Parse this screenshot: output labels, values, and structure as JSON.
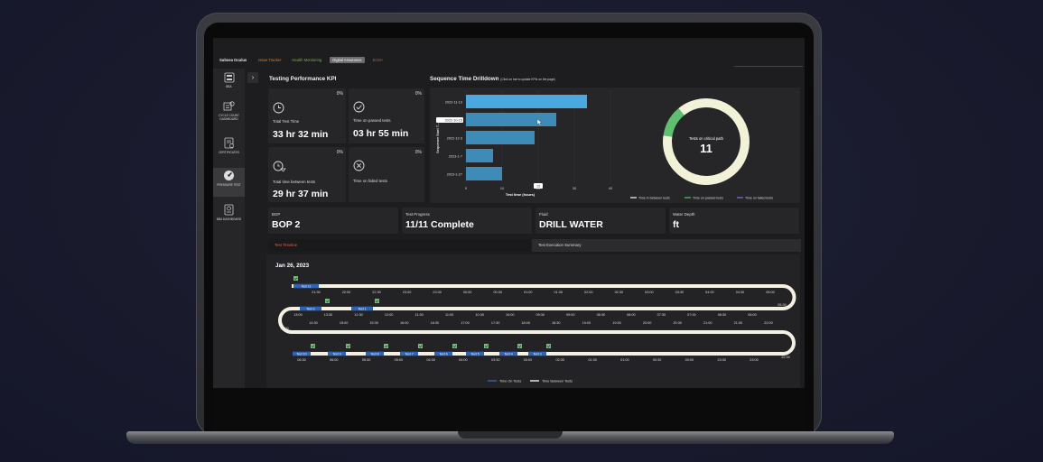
{
  "nav": {
    "brand": "Subsea Oculus",
    "links": [
      "Issue Tracker",
      "Health Monitoring",
      "Digital Assurance",
      "ECM+"
    ],
    "link_colors": [
      "#d9833a",
      "#6dbb3f",
      "#ffffff",
      "#e04a3a"
    ]
  },
  "sidebar": {
    "items": [
      "BBA",
      "CYCLE COUNT DASHBOARD",
      "CERTIFICATES",
      "PRESSURE TEST",
      "BBA DASHBOARD"
    ]
  },
  "kpi": {
    "title": "Testing Performance KPI",
    "cards": [
      {
        "label": "Total Test Time",
        "value": "33 hr 32 min",
        "pct": "0%"
      },
      {
        "label": "Time on passed tests",
        "value": "03 hr 55 min",
        "pct": "0%"
      },
      {
        "label": "Total time between tests",
        "value": "29 hr 37 min",
        "pct": "0%"
      },
      {
        "label": "Time on failed tests",
        "value": "",
        "pct": "0%"
      }
    ]
  },
  "drilldown": {
    "title": "Sequence Time Drilldown",
    "subtitle": "(Click on bar to update KPIs on the page)",
    "tooltip_value": "13",
    "donut_label": "Tests on critical path",
    "donut_value": "11"
  },
  "chart_data": [
    {
      "type": "bar",
      "orientation": "horizontal",
      "title": "Sequence Time Drilldown",
      "categories": [
        "2022-11-13",
        "2022-10-15",
        "2022-12-3",
        "2023-1-7",
        "2023-1-27"
      ],
      "values": [
        33.5,
        25,
        19,
        7.5,
        10
      ],
      "xlabel": "Test time (hours)",
      "ylabel": "Sequence Start T...",
      "xlim": [
        0,
        40
      ],
      "xticks": [
        0,
        10,
        20,
        30,
        40
      ],
      "legend": [
        "Time in between tests",
        "Time on passed tests",
        "Time on failed tests"
      ],
      "legend_colors": [
        "#ffffff",
        "#5fbf6f",
        "#8f6fd0"
      ],
      "highlight_category": "2022-10-15",
      "colors": {
        "top": "#4aa8de",
        "rest": "#3d8bb6"
      }
    },
    {
      "type": "pie",
      "labels": [
        "Time in between tests",
        "Time on passed tests",
        "Time on failed tests"
      ],
      "values": [
        29.6,
        3.9,
        0
      ],
      "colors": [
        "#f2f2d8",
        "#5fbf6f",
        "#8f6fd0"
      ]
    }
  ],
  "info": {
    "bop_label": "BOP",
    "bop_value": "BOP 2",
    "progress_label": "Test Progress",
    "progress_value": "11/11 Complete",
    "fluid_label": "Fluid",
    "fluid_value": "DRILL WATER",
    "depth_label": "Water Depth",
    "depth_value": "ft"
  },
  "tabs": {
    "timeline": "Test Timeline",
    "summary": "Test Execution Summary"
  },
  "timeline": {
    "date": "Jan 26, 2023",
    "row1_times": [
      "21:30",
      "22:00",
      "22:30",
      "23:00",
      "23:30",
      "00:00",
      "00:30",
      "01:00",
      "01:30",
      "02:00",
      "02:30",
      "03:00",
      "03:30",
      "04:00",
      "04:30",
      "05:00"
    ],
    "row2_times": [
      "13:00",
      "13:30",
      "12:30",
      "12:00",
      "11:30",
      "11:00",
      "10:30",
      "10:00",
      "09:30",
      "09:00",
      "08:30",
      "08:00",
      "07:30",
      "07:00",
      "06:30",
      "06:00"
    ],
    "row3_times": [
      "14:30",
      "15:00",
      "15:30",
      "16:00",
      "16:30",
      "17:00",
      "17:30",
      "18:00",
      "18:30",
      "19:00",
      "19:30",
      "20:00",
      "20:30",
      "21:00",
      "21:30",
      "22:00"
    ],
    "row4_times": [
      "06:30",
      "06:00",
      "05:30",
      "05:00",
      "04:30",
      "04:00",
      "03:30",
      "03:00",
      "02:30",
      "01:30",
      "01:00",
      "00:30",
      "00:00",
      "23:30",
      "23:00"
    ],
    "edge_left_mid": "14:00",
    "edge_right_1": "05:30",
    "edge_right_2": "22:30",
    "row1_tests": [
      "Test 11"
    ],
    "row2_tests": [
      "Test 2",
      "Test 1"
    ],
    "row4_tests": [
      "Test 10",
      "Test 9",
      "Test 8",
      "Test 7",
      "Test 6",
      "Test 5",
      "Test 4",
      "Test 3"
    ],
    "legend_on": "Time On Tests",
    "legend_between": "Time Between Tests"
  }
}
